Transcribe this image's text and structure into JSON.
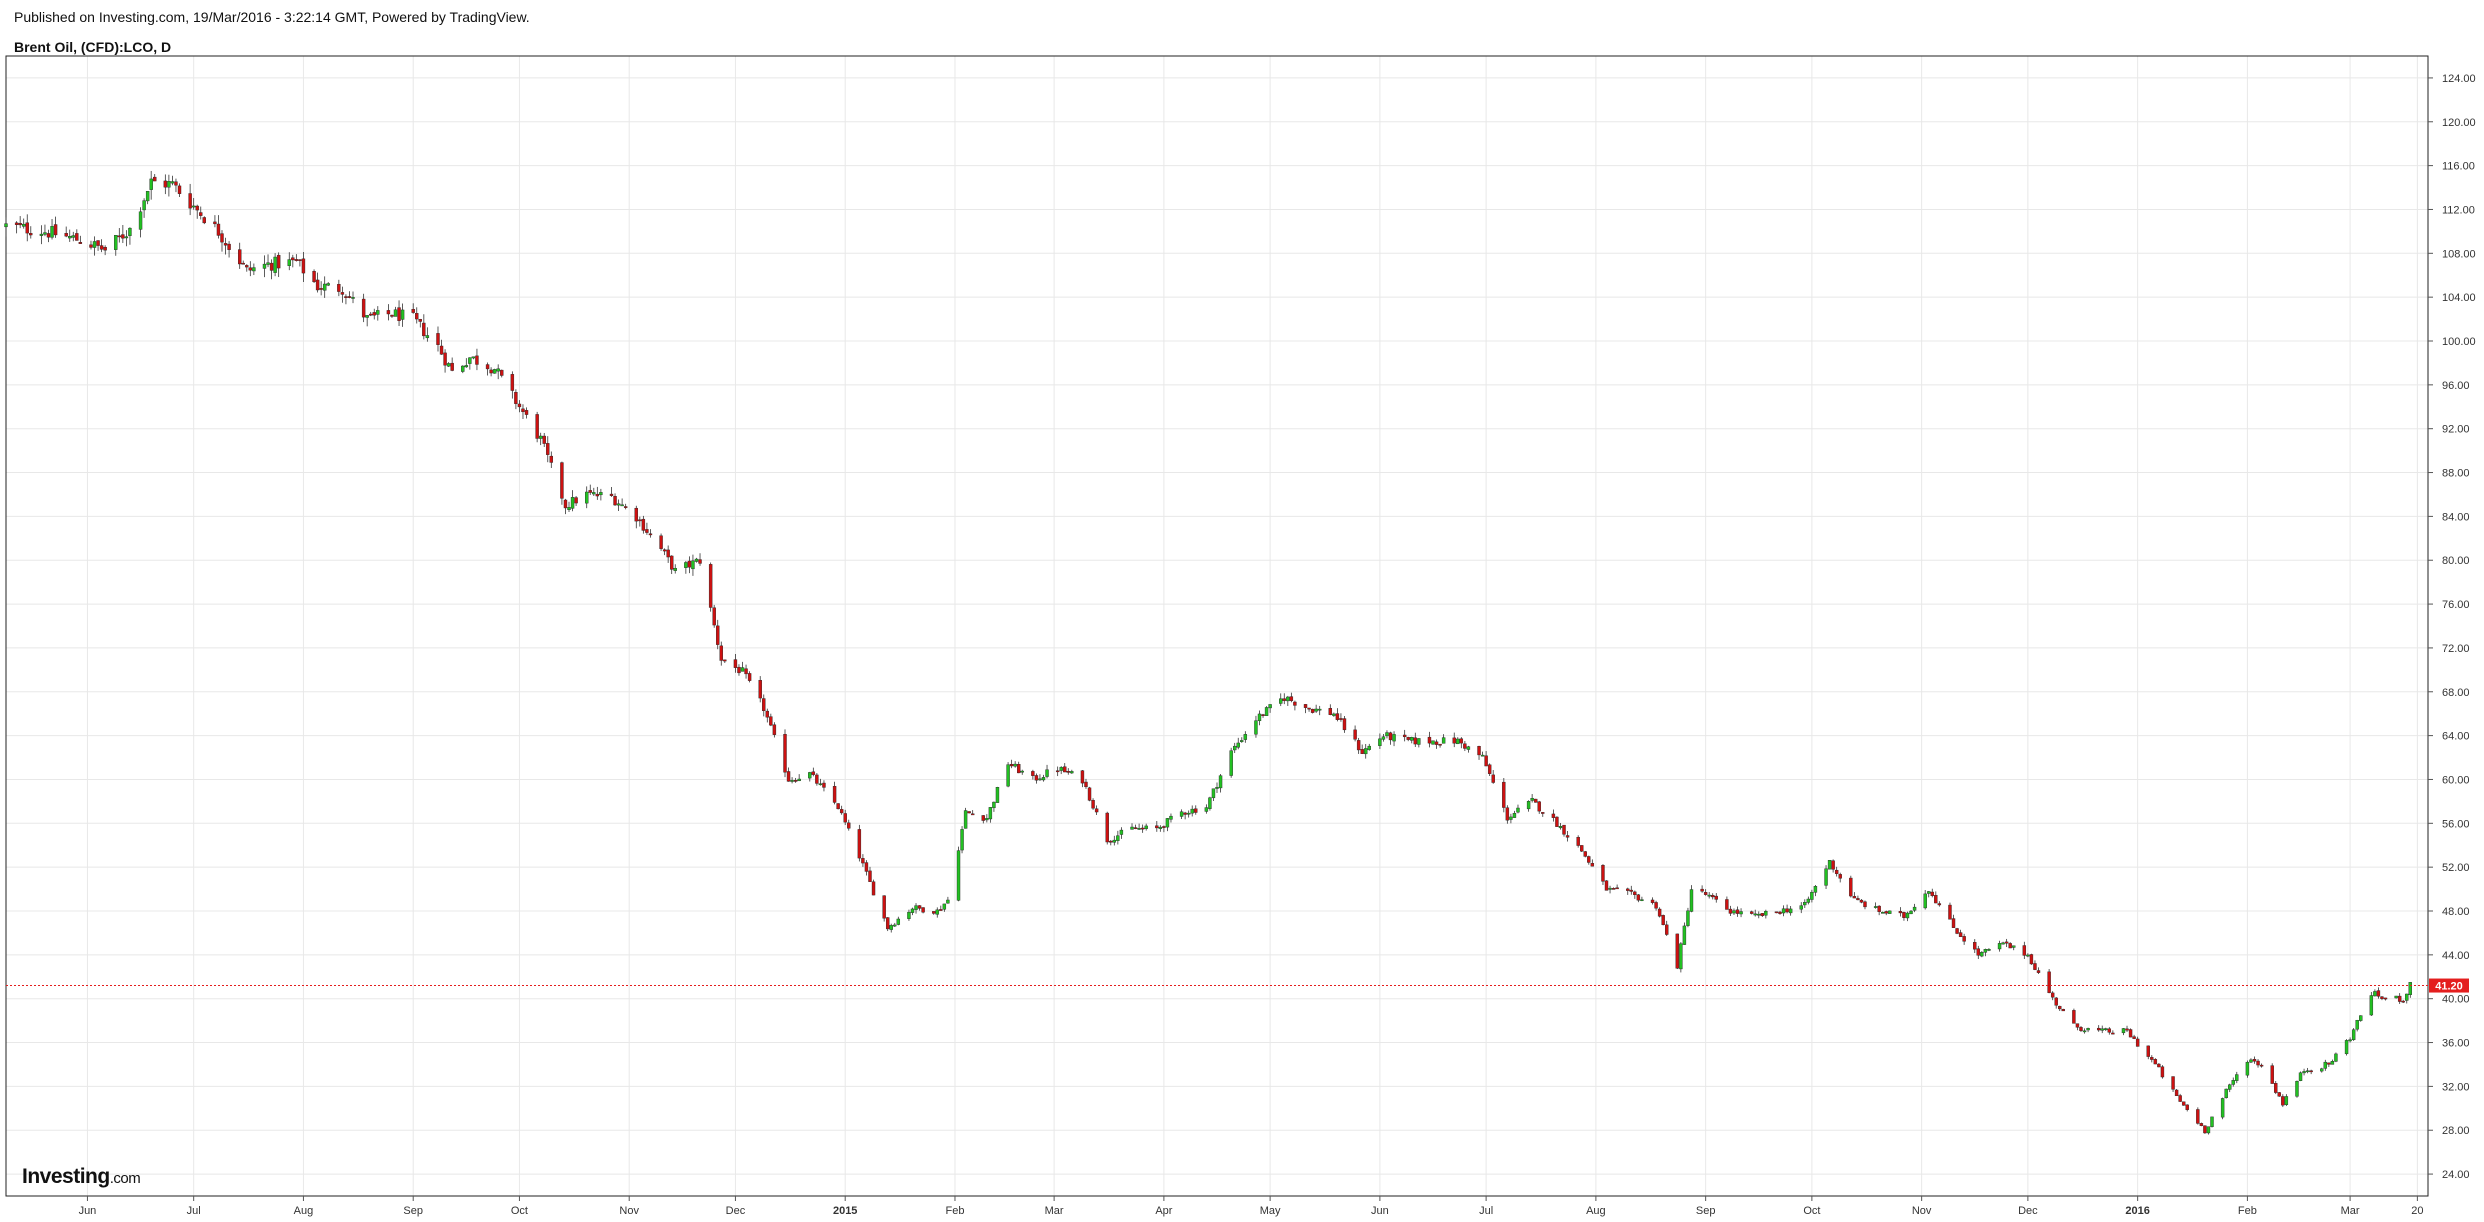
{
  "header": {
    "publish_line": "Published on Investing.com, 19/Mar/2016 - 3:22:14 GMT, Powered by TradingView.",
    "symbol_line": "Brent Oil, (CFD):LCO, D"
  },
  "logo": {
    "main": "Investing",
    "suffix": ".com"
  },
  "colors": {
    "up": "#22c022",
    "down": "#cc1111",
    "grid": "#e8e8e8",
    "last_price_line": "#e41e1e",
    "last_price_label_bg": "#e41e1e"
  },
  "chart_data": {
    "type": "candlestick",
    "title": "Brent Oil, (CFD):LCO, D",
    "interval": "D",
    "xlabel": "",
    "ylabel": "",
    "ylim": [
      22,
      126
    ],
    "y_ticks": [
      "24.00",
      "28.00",
      "32.00",
      "36.00",
      "40.00",
      "44.00",
      "48.00",
      "52.00",
      "56.00",
      "60.00",
      "64.00",
      "68.00",
      "72.00",
      "76.00",
      "80.00",
      "84.00",
      "88.00",
      "92.00",
      "96.00",
      "100.00",
      "104.00",
      "108.00",
      "112.00",
      "116.00",
      "120.00",
      "124.00"
    ],
    "x_ticks": [
      {
        "label": "Jun",
        "date": "2014-06-01",
        "bold": false
      },
      {
        "label": "Jul",
        "date": "2014-07-01",
        "bold": false
      },
      {
        "label": "Aug",
        "date": "2014-08-01",
        "bold": false
      },
      {
        "label": "Sep",
        "date": "2014-09-01",
        "bold": false
      },
      {
        "label": "Oct",
        "date": "2014-10-01",
        "bold": false
      },
      {
        "label": "Nov",
        "date": "2014-11-01",
        "bold": false
      },
      {
        "label": "Dec",
        "date": "2014-12-01",
        "bold": false
      },
      {
        "label": "2015",
        "date": "2015-01-01",
        "bold": true
      },
      {
        "label": "Feb",
        "date": "2015-02-01",
        "bold": false
      },
      {
        "label": "Mar",
        "date": "2015-03-01",
        "bold": false
      },
      {
        "label": "Apr",
        "date": "2015-04-01",
        "bold": false
      },
      {
        "label": "May",
        "date": "2015-05-01",
        "bold": false
      },
      {
        "label": "Jun",
        "date": "2015-06-01",
        "bold": false
      },
      {
        "label": "Jul",
        "date": "2015-07-01",
        "bold": false
      },
      {
        "label": "Aug",
        "date": "2015-08-01",
        "bold": false
      },
      {
        "label": "Sep",
        "date": "2015-09-01",
        "bold": false
      },
      {
        "label": "Oct",
        "date": "2015-10-01",
        "bold": false
      },
      {
        "label": "Nov",
        "date": "2015-11-01",
        "bold": false
      },
      {
        "label": "Dec",
        "date": "2015-12-01",
        "bold": false
      },
      {
        "label": "2016",
        "date": "2016-01-01",
        "bold": true
      },
      {
        "label": "Feb",
        "date": "2016-02-01",
        "bold": false
      },
      {
        "label": "Mar",
        "date": "2016-03-01",
        "bold": false
      },
      {
        "label": "20",
        "date": "2016-03-20",
        "bold": false
      }
    ],
    "x_range": [
      "2014-05-09",
      "2016-03-23"
    ],
    "last_price": 41.2,
    "last_price_label": "41.20",
    "grid": true,
    "close_series": [
      [
        "2014-05-09",
        110.5
      ],
      [
        "2014-05-20",
        110.0
      ],
      [
        "2014-05-30",
        109.2
      ],
      [
        "2014-06-06",
        108.3
      ],
      [
        "2014-06-13",
        110.2
      ],
      [
        "2014-06-19",
        114.5
      ],
      [
        "2014-06-25",
        114.3
      ],
      [
        "2014-07-01",
        112.3
      ],
      [
        "2014-07-08",
        110.0
      ],
      [
        "2014-07-16",
        106.4
      ],
      [
        "2014-07-22",
        107.0
      ],
      [
        "2014-07-30",
        107.2
      ],
      [
        "2014-08-05",
        105.0
      ],
      [
        "2014-08-12",
        104.8
      ],
      [
        "2014-08-19",
        102.0
      ],
      [
        "2014-08-26",
        102.5
      ],
      [
        "2014-09-01",
        102.0
      ],
      [
        "2014-09-08",
        99.5
      ],
      [
        "2014-09-12",
        97.2
      ],
      [
        "2014-09-17",
        98.5
      ],
      [
        "2014-09-24",
        97.5
      ],
      [
        "2014-10-01",
        94.0
      ],
      [
        "2014-10-07",
        91.0
      ],
      [
        "2014-10-14",
        85.0
      ],
      [
        "2014-10-20",
        86.0
      ],
      [
        "2014-10-27",
        85.8
      ],
      [
        "2014-11-03",
        84.0
      ],
      [
        "2014-11-10",
        81.0
      ],
      [
        "2014-11-14",
        79.0
      ],
      [
        "2014-11-21",
        80.0
      ],
      [
        "2014-11-27",
        71.0
      ],
      [
        "2014-12-03",
        69.8
      ],
      [
        "2014-12-09",
        66.5
      ],
      [
        "2014-12-16",
        60.0
      ],
      [
        "2014-12-22",
        60.5
      ],
      [
        "2014-12-30",
        57.5
      ],
      [
        "2015-01-05",
        53.0
      ],
      [
        "2015-01-13",
        46.5
      ],
      [
        "2015-01-20",
        48.3
      ],
      [
        "2015-01-27",
        48.0
      ],
      [
        "2015-01-30",
        49.0
      ],
      [
        "2015-02-04",
        57.0
      ],
      [
        "2015-02-10",
        56.5
      ],
      [
        "2015-02-16",
        61.5
      ],
      [
        "2015-02-23",
        60.0
      ],
      [
        "2015-03-02",
        61.0
      ],
      [
        "2015-03-09",
        60.0
      ],
      [
        "2015-03-16",
        54.5
      ],
      [
        "2015-03-23",
        55.5
      ],
      [
        "2015-03-30",
        55.5
      ],
      [
        "2015-04-06",
        57.0
      ],
      [
        "2015-04-13",
        57.5
      ],
      [
        "2015-04-20",
        62.5
      ],
      [
        "2015-04-27",
        65.5
      ],
      [
        "2015-05-05",
        67.5
      ],
      [
        "2015-05-12",
        66.5
      ],
      [
        "2015-05-19",
        66.0
      ],
      [
        "2015-05-27",
        62.5
      ],
      [
        "2015-06-02",
        64.0
      ],
      [
        "2015-06-09",
        63.5
      ],
      [
        "2015-06-16",
        63.5
      ],
      [
        "2015-06-23",
        63.5
      ],
      [
        "2015-06-30",
        62.0
      ],
      [
        "2015-07-07",
        56.5
      ],
      [
        "2015-07-14",
        58.0
      ],
      [
        "2015-07-21",
        56.0
      ],
      [
        "2015-07-28",
        53.5
      ],
      [
        "2015-08-04",
        50.0
      ],
      [
        "2015-08-11",
        49.5
      ],
      [
        "2015-08-18",
        48.5
      ],
      [
        "2015-08-24",
        43.0
      ],
      [
        "2015-08-28",
        50.0
      ],
      [
        "2015-09-01",
        49.5
      ],
      [
        "2015-09-08",
        48.0
      ],
      [
        "2015-09-15",
        47.5
      ],
      [
        "2015-09-22",
        48.0
      ],
      [
        "2015-09-29",
        48.5
      ],
      [
        "2015-10-06",
        52.5
      ],
      [
        "2015-10-13",
        49.0
      ],
      [
        "2015-10-20",
        48.0
      ],
      [
        "2015-10-27",
        47.5
      ],
      [
        "2015-11-03",
        50.0
      ],
      [
        "2015-11-10",
        46.5
      ],
      [
        "2015-11-17",
        44.0
      ],
      [
        "2015-11-24",
        45.0
      ],
      [
        "2015-12-01",
        44.0
      ],
      [
        "2015-12-08",
        40.0
      ],
      [
        "2015-12-14",
        37.5
      ],
      [
        "2015-12-21",
        37.0
      ],
      [
        "2015-12-29",
        37.0
      ],
      [
        "2016-01-06",
        34.0
      ],
      [
        "2016-01-12",
        31.0
      ],
      [
        "2016-01-20",
        28.0
      ],
      [
        "2016-01-26",
        31.5
      ],
      [
        "2016-02-01",
        34.5
      ],
      [
        "2016-02-05",
        34.0
      ],
      [
        "2016-02-11",
        30.5
      ],
      [
        "2016-02-17",
        33.5
      ],
      [
        "2016-02-24",
        34.0
      ],
      [
        "2016-03-01",
        36.5
      ],
      [
        "2016-03-07",
        40.5
      ],
      [
        "2016-03-11",
        40.0
      ],
      [
        "2016-03-16",
        40.0
      ],
      [
        "2016-03-18",
        41.2
      ]
    ]
  }
}
